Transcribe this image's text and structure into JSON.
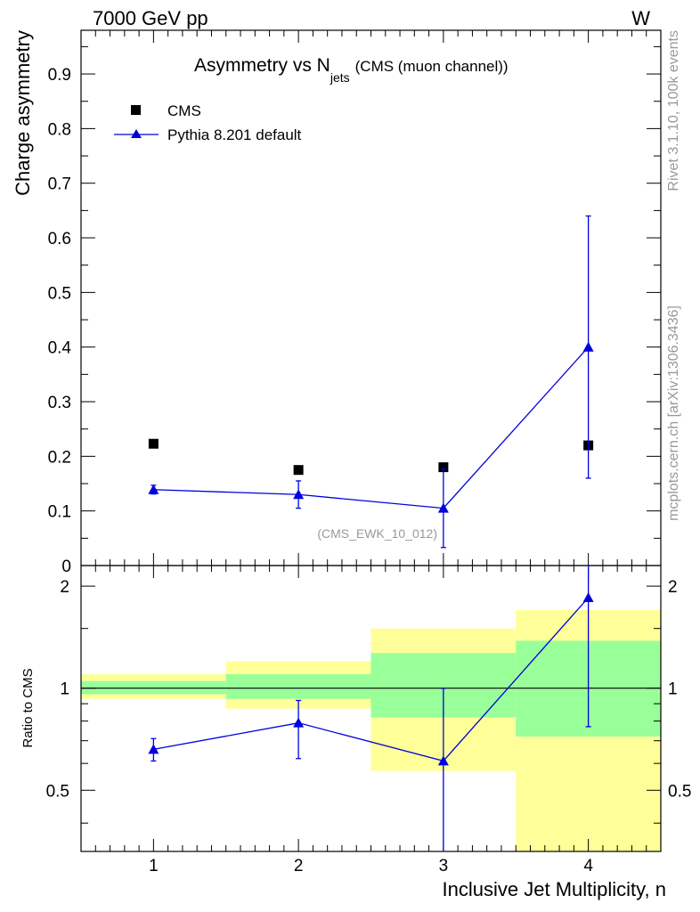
{
  "header": {
    "left": "7000 GeV pp",
    "right": "W"
  },
  "side_text": {
    "rivet": "Rivet 3.1.10,  100k events",
    "mcplots": "mcplots.cern.ch [arXiv:1306.3436]"
  },
  "colors": {
    "mc": "#0000dd",
    "data": "#000000",
    "band_inner": "#99ff99",
    "band_outer": "#ffff99"
  },
  "chart_data": [
    {
      "type": "scatter",
      "title_main": "Asymmetry vs N",
      "title_sub": "jets",
      "title_paren": "(CMS (muon channel))",
      "ylabel": "Charge asymmetry",
      "xlim": [
        0.5,
        4.5
      ],
      "ylim": [
        0,
        0.98
      ],
      "yticks": [
        0,
        0.1,
        0.2,
        0.3,
        0.4,
        0.5,
        0.6,
        0.7,
        0.8,
        0.9
      ],
      "ytick_labels": [
        "0",
        "0.1",
        "0.2",
        "0.3",
        "0.4",
        "0.5",
        "0.6",
        "0.7",
        "0.8",
        "0.9"
      ],
      "legend": {
        "placement": "top-left",
        "data_label": "CMS",
        "mc_label": "Pythia 8.201 default"
      },
      "annotation": "(CMS_EWK_10_012)",
      "series": [
        {
          "name": "CMS",
          "x": [
            1,
            2,
            3,
            4
          ],
          "y": [
            0.223,
            0.175,
            0.18,
            0.22
          ]
        },
        {
          "name": "Pythia 8.201 default",
          "x": [
            1,
            2,
            3,
            4
          ],
          "y": [
            0.139,
            0.13,
            0.105,
            0.4
          ],
          "err_low": [
            0.008,
            0.025,
            0.072,
            0.24
          ],
          "err_high": [
            0.008,
            0.025,
            0.072,
            0.24
          ]
        }
      ]
    },
    {
      "type": "line",
      "ylabel": "Ratio to CMS",
      "xlabel": "Inclusive Jet Multiplicity, n",
      "xlim": [
        0.5,
        4.5
      ],
      "ylim": [
        0.33,
        2.3
      ],
      "xticks": [
        1,
        2,
        3,
        4
      ],
      "xtick_labels": [
        "1",
        "2",
        "3",
        "4"
      ],
      "yticks": [
        0.5,
        1,
        2
      ],
      "ytick_labels": [
        "0.5",
        "1",
        "2"
      ],
      "bands": [
        {
          "x0": 0.5,
          "x1": 1.5,
          "inner": [
            0.96,
            1.05
          ],
          "outer": [
            0.93,
            1.1
          ]
        },
        {
          "x0": 1.5,
          "x1": 2.5,
          "inner": [
            0.93,
            1.1
          ],
          "outer": [
            0.87,
            1.2
          ]
        },
        {
          "x0": 2.5,
          "x1": 3.5,
          "inner": [
            0.82,
            1.27
          ],
          "outer": [
            0.57,
            1.5
          ]
        },
        {
          "x0": 3.5,
          "x1": 4.5,
          "inner": [
            0.72,
            1.38
          ],
          "outer": [
            0.33,
            1.7
          ]
        }
      ],
      "series": [
        {
          "name": "Pythia 8.201 default",
          "x": [
            1,
            2,
            3,
            4
          ],
          "y": [
            0.66,
            0.79,
            0.61,
            1.85
          ],
          "err_low": [
            0.05,
            0.17,
            0.33,
            1.08
          ],
          "err_high": [
            0.05,
            0.13,
            0.39,
            0.5
          ]
        }
      ]
    }
  ]
}
